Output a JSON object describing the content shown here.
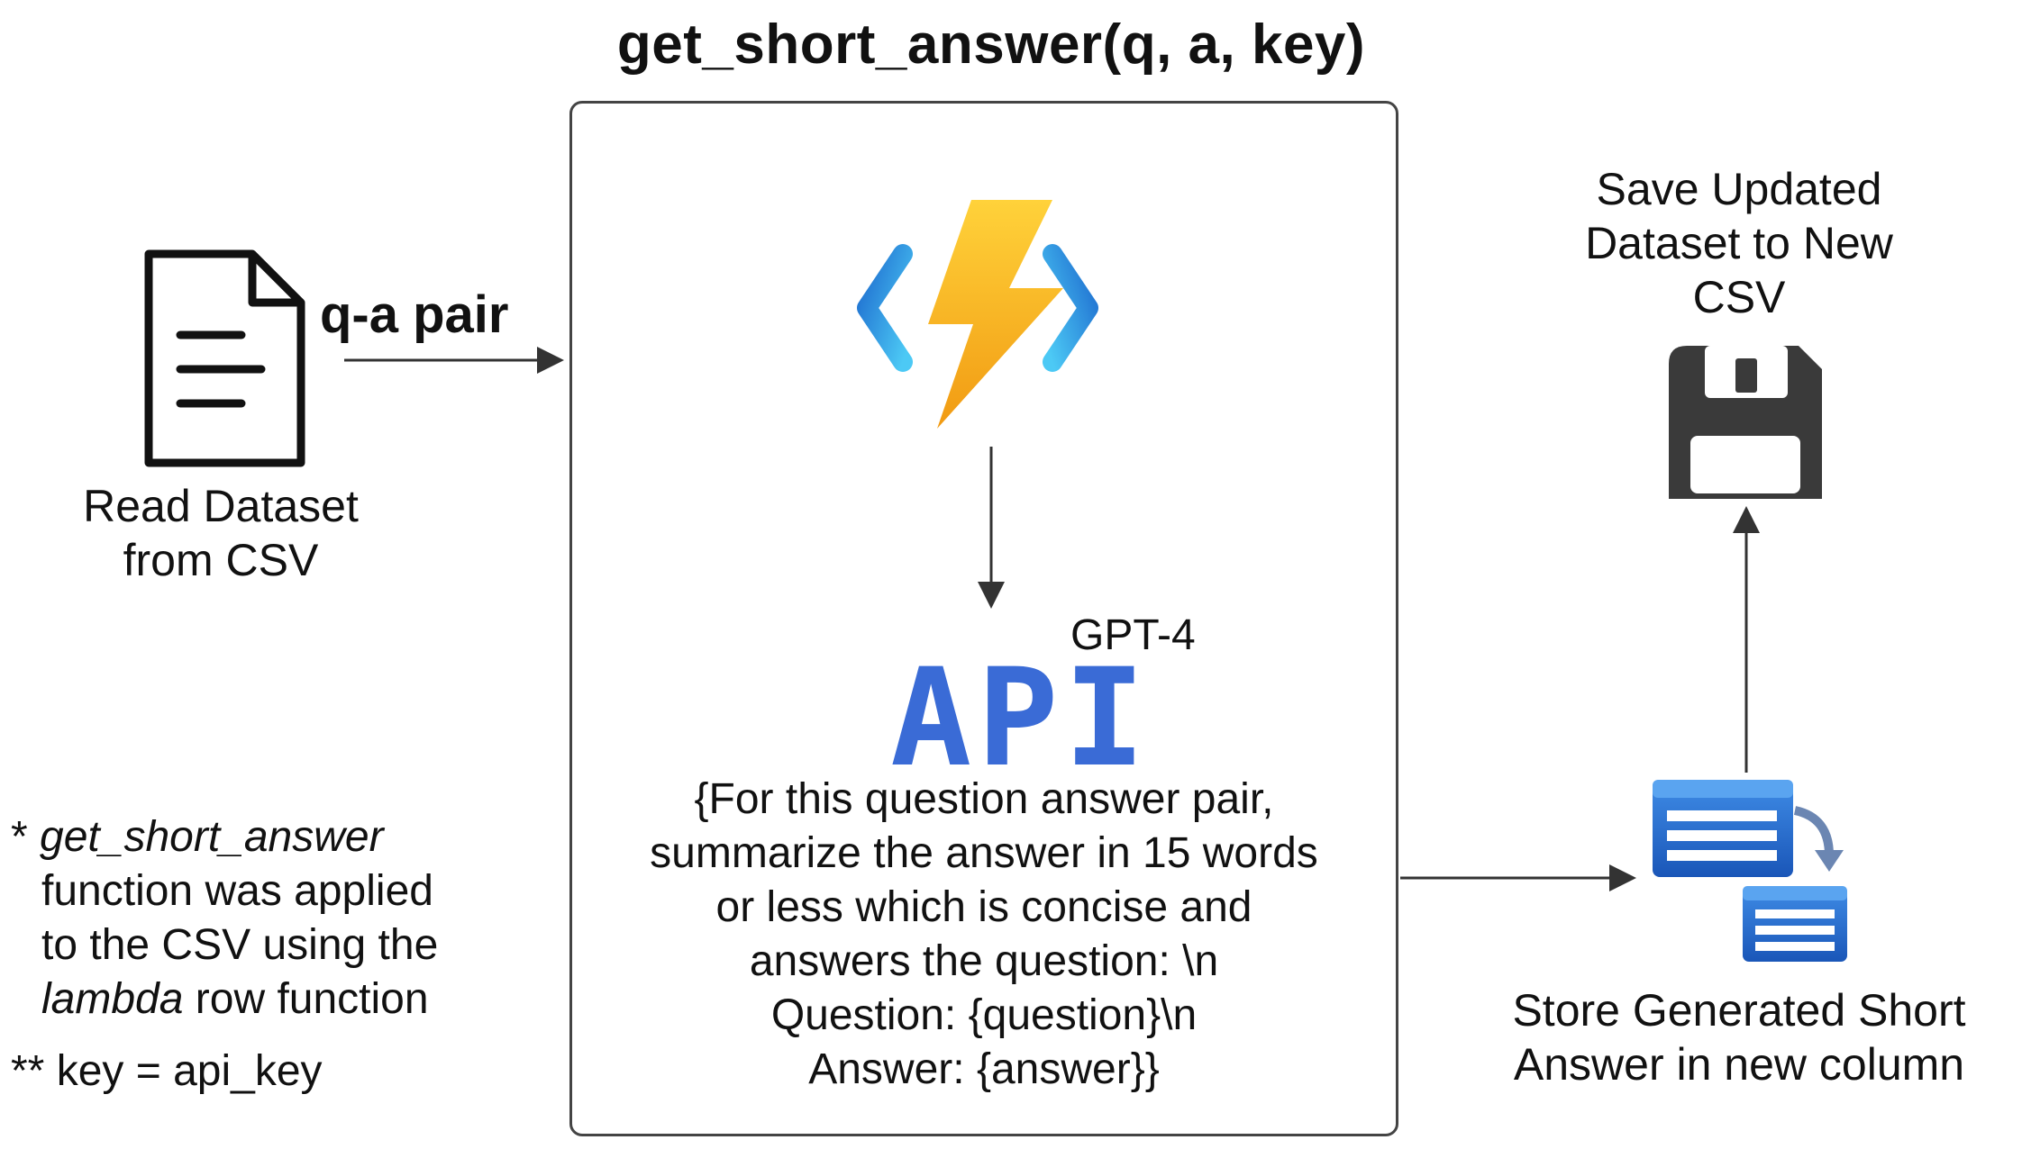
{
  "function_title": "get_short_answer(q, a, key)",
  "edge_label_qa": "q-a pair",
  "read_dataset": [
    "Read Dataset",
    "from CSV"
  ],
  "gpt_label": "GPT-4",
  "api_label": "API",
  "prompt_lines": [
    "{For this question answer pair,",
    "summarize the answer in 15 words",
    "or less which is concise and",
    "answers the question: \\n",
    "Question: {question}\\n",
    "Answer: {answer}}"
  ],
  "save_label": [
    "Save Updated",
    "Dataset to New",
    "CSV"
  ],
  "store_label": [
    "Store Generated Short",
    "Answer in new column"
  ],
  "notes": {
    "note1_star": "* ",
    "note1_fn": "get_short_answer",
    "note1_line2": "function was applied",
    "note1_line3": "to the CSV  using the",
    "note1_lambda": "lambda",
    "note1_line4_rest": " row function",
    "note2": "** key = api_key"
  },
  "icons": {
    "document": "document-icon",
    "function": "azure-function-bolt-icon",
    "save": "floppy-disk-icon",
    "store": "table-copy-icon"
  },
  "colors": {
    "bolt_top": "#ffd23a",
    "bolt_bottom": "#f19a12",
    "bracket_dark": "#1f6fd0",
    "bracket_light": "#4cc9f5",
    "api_blue": "#3a6bd6",
    "store_blue": "#1f63c7"
  }
}
